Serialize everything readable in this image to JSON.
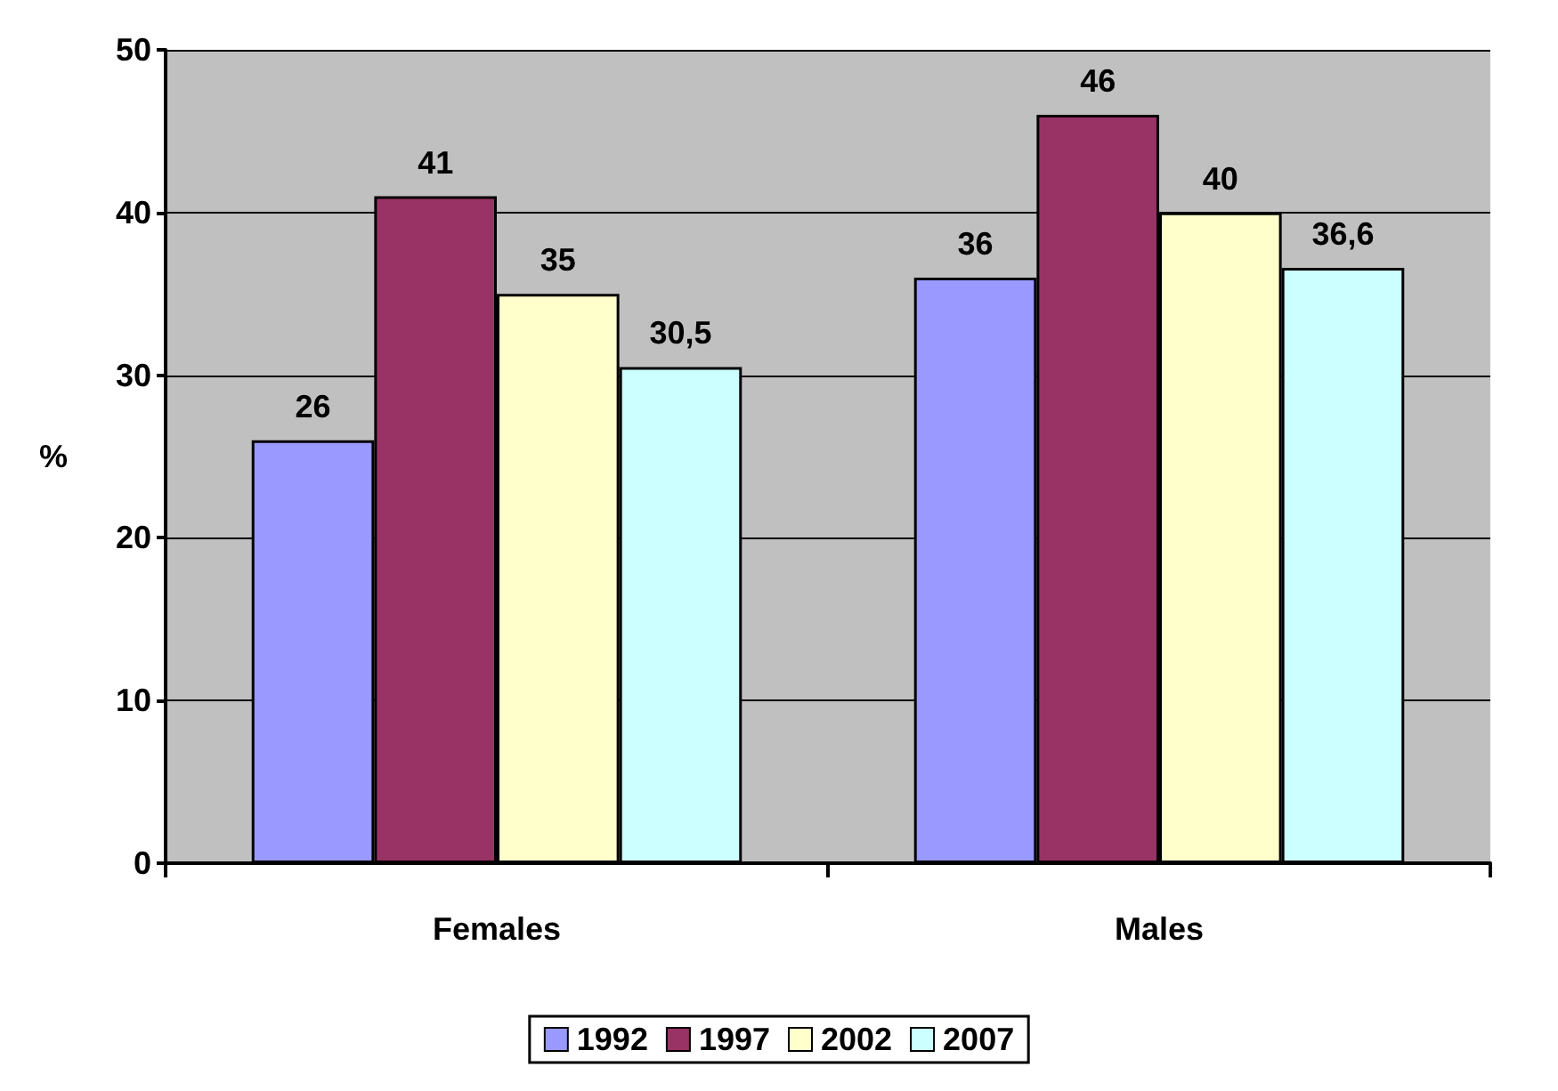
{
  "chart_data": {
    "type": "bar",
    "ylabel": "%",
    "categories": [
      "Females",
      "Males"
    ],
    "series": [
      {
        "name": "1992",
        "color": "#9999ff",
        "values": [
          26,
          36
        ],
        "value_labels": [
          "26",
          "36"
        ]
      },
      {
        "name": "1997",
        "color": "#993366",
        "values": [
          41,
          46
        ],
        "value_labels": [
          "41",
          "46"
        ]
      },
      {
        "name": "2002",
        "color": "#ffffcc",
        "values": [
          35,
          40
        ],
        "value_labels": [
          "35",
          "40"
        ]
      },
      {
        "name": "2007",
        "color": "#ccffff",
        "values": [
          30.5,
          36.6
        ],
        "value_labels": [
          "30,5",
          "36,6"
        ]
      }
    ],
    "ylim": [
      0,
      50
    ],
    "yticks": [
      0,
      10,
      20,
      30,
      40,
      50
    ],
    "grid": "y",
    "legend": "bottom"
  }
}
